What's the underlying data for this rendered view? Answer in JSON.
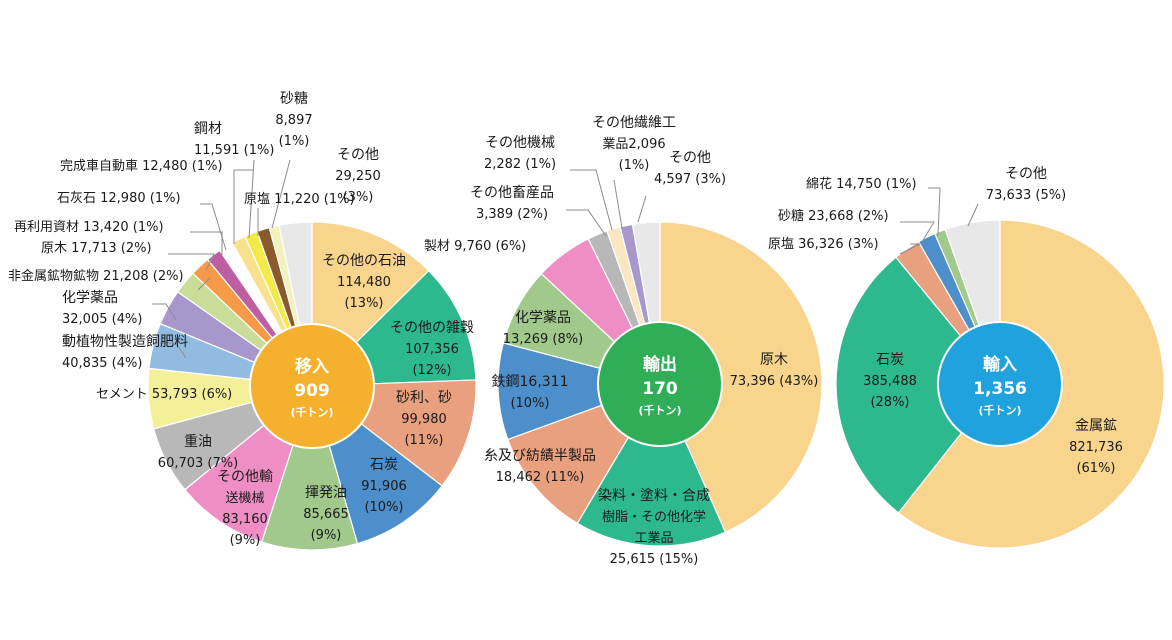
{
  "chart_data": [
    {
      "type": "pie",
      "center_title": "移入",
      "center_value": "909",
      "center_unit": "(千トン)",
      "center_color": "#F5B12E",
      "slices": [
        {
          "name": "その他の石油",
          "value": 114480,
          "pct": 13,
          "lines": [
            "その他の石油",
            "114,480",
            "(13%)"
          ],
          "color": "#F8D48C"
        },
        {
          "name": "その他の雑穀",
          "value": 107356,
          "pct": 12,
          "lines": [
            "その他の雑穀",
            "107,356",
            "(12%)"
          ],
          "color": "#2EB88E"
        },
        {
          "name": "砂利、砂",
          "value": 99980,
          "pct": 11,
          "lines": [
            "砂利、砂",
            "99,980",
            "(11%)"
          ],
          "color": "#E9A07E"
        },
        {
          "name": "石炭",
          "value": 91906,
          "pct": 10,
          "lines": [
            "石炭",
            "91,906",
            "(10%)"
          ],
          "color": "#4D8FCB"
        },
        {
          "name": "揮発油",
          "value": 85665,
          "pct": 9,
          "lines": [
            "揮発油",
            "85,665",
            "(9%)"
          ],
          "color": "#A1C98C"
        },
        {
          "name": "その他輸送機械",
          "value": 83160,
          "pct": 9,
          "lines": [
            "その他輸",
            "送機械",
            "83,160",
            "(9%)"
          ],
          "color": "#EE8EC4"
        },
        {
          "name": "重油",
          "value": 60703,
          "pct": 7,
          "lines": [
            "重油",
            "60,703 (7%)"
          ],
          "color": "#B8B8B8"
        },
        {
          "name": "セメント",
          "value": 53793,
          "pct": 6,
          "lines": [
            "セメント 53,793  (6%)"
          ],
          "color": "#F4F09A"
        },
        {
          "name": "動植物性製造飼肥料",
          "value": 40835,
          "pct": 4,
          "lines": [
            "動植物性製造飼肥料",
            "40,835 (4%)"
          ],
          "color": "#92BBE2"
        },
        {
          "name": "化学薬品",
          "value": 32005,
          "pct": 4,
          "lines": [
            "化学薬品",
            "32,005 (4%)"
          ],
          "color": "#A797CC"
        },
        {
          "name": "非金属鉱物鉱物",
          "value": 21208,
          "pct": 2,
          "lines": [
            "非金属鉱物鉱物 21,208 (2%)"
          ],
          "color": "#C9DD98"
        },
        {
          "name": "原木",
          "value": 17713,
          "pct": 2,
          "lines": [
            "原木 17,713 (2%)"
          ],
          "color": "#F69A4A"
        },
        {
          "name": "再利用資材",
          "value": 13420,
          "pct": 1,
          "lines": [
            "再利用資材 13,420 (1%)"
          ],
          "color": "#BE5FA3"
        },
        {
          "name": "石灰石",
          "value": 12980,
          "pct": 1,
          "lines": [
            "石灰石 12,980 (1%)"
          ],
          "color": "#FFFFFF"
        },
        {
          "name": "完成車自動車",
          "value": 12480,
          "pct": 1,
          "lines": [
            "完成車自動車 12,480 (1%)"
          ],
          "color": "#F8E08C"
        },
        {
          "name": "鋼材",
          "value": 11591,
          "pct": 1,
          "lines": [
            "鋼材",
            "11,591 (1%)"
          ],
          "color": "#F3EA4A"
        },
        {
          "name": "原塩",
          "value": 11220,
          "pct": 1,
          "lines": [
            "原塩 11,220 (1%)"
          ],
          "color": "#8B5A2B"
        },
        {
          "name": "砂糖",
          "value": 8897,
          "pct": 1,
          "lines": [
            "砂糖",
            "8,897",
            "(1%)"
          ],
          "color": "#F2F2C0"
        },
        {
          "name": "その他",
          "value": 29250,
          "pct": 3,
          "lines": [
            "その他",
            "29,250",
            "(3%)"
          ],
          "color": "#E8E8E8"
        }
      ]
    },
    {
      "type": "pie",
      "center_title": "輸出",
      "center_value": "170",
      "center_unit": "(千トン)",
      "center_color": "#30AE57",
      "slices": [
        {
          "name": "原木",
          "value": 73396,
          "pct": 43,
          "lines": [
            "原木",
            "73,396  (43%)"
          ],
          "color": "#F8D48C"
        },
        {
          "name": "染料・塗料・合成樹脂・その他化学工業品",
          "value": 25615,
          "pct": 15,
          "lines": [
            "染料・塗料・合成",
            "樹脂・その他化学",
            "工業品",
            "25,615  (15%)"
          ],
          "color": "#2EB88E"
        },
        {
          "name": "糸及び紡績半製品",
          "value": 18462,
          "pct": 11,
          "lines": [
            "糸及び紡績半製品",
            "18,462 (11%)"
          ],
          "color": "#E9A07E"
        },
        {
          "name": "鉄鋼",
          "value": 16311,
          "pct": 10,
          "lines": [
            "鉄鋼16,311",
            "(10%)"
          ],
          "color": "#4D8FCB"
        },
        {
          "name": "化学薬品",
          "value": 13269,
          "pct": 8,
          "lines": [
            "化学薬品",
            "13,269 (8%)"
          ],
          "color": "#A1C98C"
        },
        {
          "name": "製材",
          "value": 9760,
          "pct": 6,
          "lines": [
            "製材  9,760 (6%)"
          ],
          "color": "#EE8EC4"
        },
        {
          "name": "その他畜産品",
          "value": 3389,
          "pct": 2,
          "lines": [
            "その他畜産品",
            "3,389 (2%)"
          ],
          "color": "#B8B8B8"
        },
        {
          "name": "その他機械",
          "value": 2282,
          "pct": 1,
          "lines": [
            "その他機械",
            "2,282 (1%)"
          ],
          "color": "#FBE6C4"
        },
        {
          "name": "その他繊維工業品",
          "value": 2096,
          "pct": 1,
          "lines": [
            "その他繊維工",
            "業品2,096",
            "(1%)"
          ],
          "color": "#A797CC"
        },
        {
          "name": "その他",
          "value": 4597,
          "pct": 3,
          "lines": [
            "その他",
            "4,597 (3%)"
          ],
          "color": "#E8E8E8"
        }
      ]
    },
    {
      "type": "pie",
      "center_title": "輸入",
      "center_value": "1,356",
      "center_unit": "(千トン)",
      "center_color": "#1FA2DE",
      "slices": [
        {
          "name": "金属鉱",
          "value": 821736,
          "pct": 61,
          "lines": [
            "金属鉱",
            "821,736",
            "(61%)"
          ],
          "color": "#F8D48C"
        },
        {
          "name": "石炭",
          "value": 385488,
          "pct": 28,
          "lines": [
            "石炭",
            "385,488",
            "(28%)"
          ],
          "color": "#2EB88E"
        },
        {
          "name": "原塩",
          "value": 36326,
          "pct": 3,
          "lines": [
            "原塩 36,326 (3%)"
          ],
          "color": "#E9A07E"
        },
        {
          "name": "砂糖",
          "value": 23668,
          "pct": 2,
          "lines": [
            "砂糖 23,668 (2%)"
          ],
          "color": "#4D8FCB"
        },
        {
          "name": "綿花",
          "value": 14750,
          "pct": 1,
          "lines": [
            "綿花 14,750 (1%)"
          ],
          "color": "#A1C98C"
        },
        {
          "name": "その他",
          "value": 73633,
          "pct": 5,
          "lines": [
            "その他",
            "73,633 (5%)"
          ],
          "color": "#E8E8E8"
        }
      ]
    }
  ]
}
